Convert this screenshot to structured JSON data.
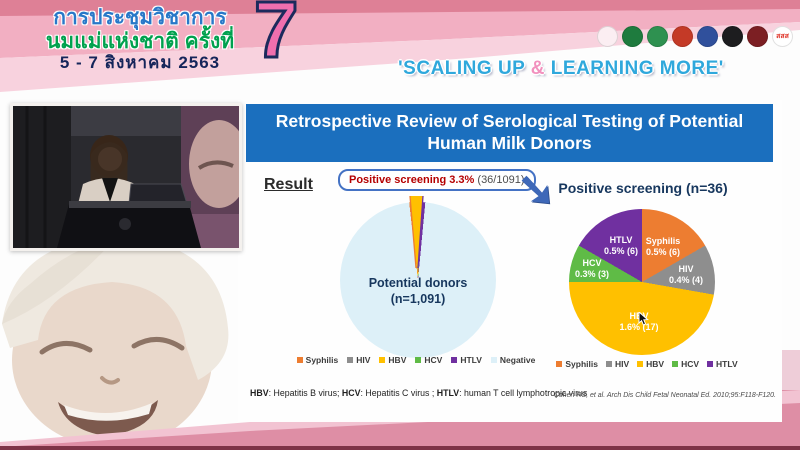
{
  "header": {
    "title_line1": "การประชุมวิชาการ",
    "title_line2": "นมแม่แห่งชาติ ครั้งที่",
    "title_line3": "5 - 7 สิงหาคม 2563",
    "big_number": "7",
    "slogan_prefix": "'SCALING UP ",
    "slogan_amp": "&",
    "slogan_suffix": " LEARNING MORE'",
    "colors": {
      "band_dark": "#de8096",
      "band_mid": "#f2afc2",
      "band_light": "#f8d2de",
      "seven_fill": "#f06fae",
      "seven_outline": "#1c2a5c",
      "slogan_blue": "#2fa8dc",
      "slogan_amp_pink": "#f291be"
    },
    "logos": [
      {
        "name": "milk-foundation",
        "color": "#fbeef2"
      },
      {
        "name": "ministry-of-public-health",
        "color": "#1e7b3e"
      },
      {
        "name": "department-of-health",
        "color": "#2e9150"
      },
      {
        "name": "university-crest",
        "color": "#c43a27"
      },
      {
        "name": "royal-crest",
        "color": "#30509c"
      },
      {
        "name": "medical-association",
        "color": "#1d1d1f"
      },
      {
        "name": "royal-college",
        "color": "#7c1f23"
      },
      {
        "name": "thai-health-sss",
        "color": "#ffffff",
        "text": "สสส",
        "text_color": "#e03a2f"
      }
    ]
  },
  "icons": {
    "arrow_down_right": "➘"
  },
  "slide": {
    "title": "Retrospective Review of Serological Testing of Potential Human Milk Donors",
    "title_bg": "#1b6fbe",
    "result_label": "Result",
    "callout": {
      "highlight": "Positive screening 3.3%",
      "detail": " (36/1091)"
    },
    "footnote_parts": [
      {
        "text": "HBV",
        "bold": true
      },
      {
        "text": ": Hepatitis B virus; ",
        "bold": false
      },
      {
        "text": "HCV",
        "bold": true
      },
      {
        "text": ": Hepatitis C virus ; ",
        "bold": false
      },
      {
        "text": "HTLV",
        "bold": true
      },
      {
        "text": ": human T cell lymphotropic virus",
        "bold": false
      }
    ],
    "citation": "Cohen RS, et al. Arch Dis Child Fetal Neonatal Ed. 2010;95:F118-F120."
  },
  "chart_data": [
    {
      "type": "pie",
      "title": "Potential donors (n=1,091)",
      "center_label_line1": "Potential donors",
      "center_label_line2": "(n=1,091)",
      "n_total": 1091,
      "categories": [
        "Syphilis",
        "HIV",
        "HBV",
        "HCV",
        "HTLV",
        "Negative"
      ],
      "values": [
        6,
        4,
        17,
        3,
        6,
        1055
      ],
      "colors": [
        "#ED7D31",
        "#8E8E8E",
        "#FFC000",
        "#5FBB46",
        "#7030A0",
        "#DDF0F8"
      ],
      "annotation": "Positive screening 3.3% (36/1091)",
      "legend_position": "bottom"
    },
    {
      "type": "pie",
      "title": "Positive screening (n=36)",
      "n_total": 36,
      "categories": [
        "Syphilis",
        "HIV",
        "HBV",
        "HCV",
        "HTLV"
      ],
      "values": [
        6,
        4,
        17,
        3,
        6
      ],
      "percent_labels": [
        "0.5% (6)",
        "0.4% (4)",
        "1.6% (17)",
        "0.3% (3)",
        "0.5% (6)"
      ],
      "colors": [
        "#ED7D31",
        "#8E8E8E",
        "#FFC000",
        "#5FBB46",
        "#7030A0"
      ],
      "legend_position": "bottom"
    }
  ]
}
